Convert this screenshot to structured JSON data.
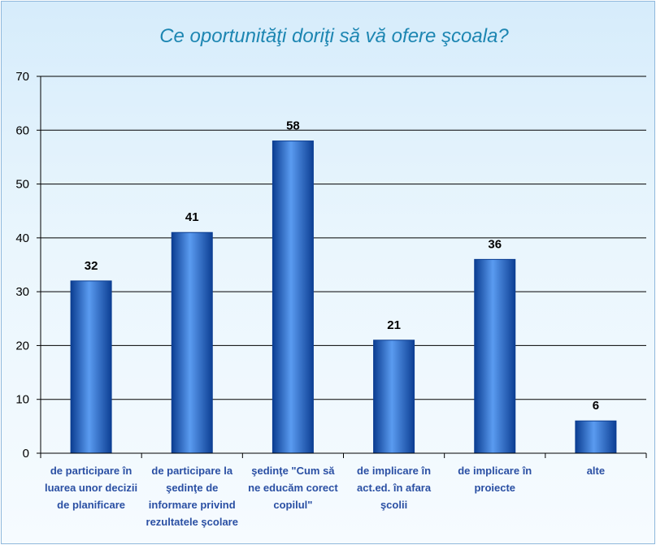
{
  "chart_data": {
    "type": "bar",
    "title": "Ce oportunităţi doriţi să vă ofere şcoala?",
    "categories": [
      [
        "de participare în",
        "luarea unor decizii",
        "de planificare"
      ],
      [
        "de participare la",
        "şedinţe de",
        "informare privind",
        "rezultatele şcolare"
      ],
      [
        "şedinţe \"Cum să",
        "ne educăm corect",
        "copilul\""
      ],
      [
        "de implicare în",
        "act.ed. în afara",
        "şcolii"
      ],
      [
        "de implicare în",
        "proiecte"
      ],
      [
        "alte"
      ]
    ],
    "values": [
      32,
      41,
      58,
      21,
      36,
      6
    ],
    "ylim": [
      0,
      70
    ],
    "yticks": [
      0,
      10,
      20,
      30,
      40,
      50,
      60,
      70
    ],
    "grid": true,
    "colors": {
      "bar_dark": "#0b3d91",
      "bar_mid": "#1f5fc7",
      "bar_light": "#5a9bf0",
      "grid": "#000000",
      "title": "#1d86b2",
      "category_text": "#2a4fa3"
    }
  }
}
